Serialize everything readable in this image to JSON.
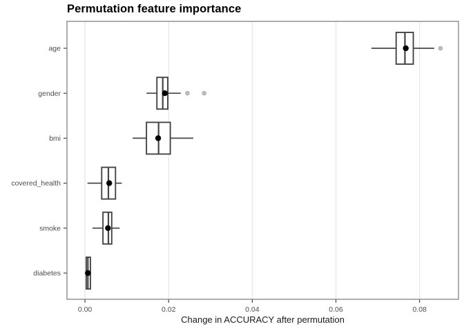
{
  "chart_data": {
    "type": "boxplot",
    "orientation": "horizontal",
    "title": "Permutation feature importance",
    "xlabel": "Change in ACCURACY after permutation",
    "ylabel": "",
    "legend": "none",
    "grid": "major-vertical-only",
    "categories": [
      "age",
      "gender",
      "bmi",
      "covered_health",
      "smoke",
      "diabetes"
    ],
    "xlim": [
      -0.0043,
      0.0893
    ],
    "x_ticks": [
      {
        "label": "0.00",
        "value": 0.0
      },
      {
        "label": "0.02",
        "value": 0.02
      },
      {
        "label": "0.04",
        "value": 0.04
      },
      {
        "label": "0.06",
        "value": 0.06
      },
      {
        "label": "0.08",
        "value": 0.08
      }
    ],
    "boxes": [
      {
        "label": "age",
        "whisker_low": 0.0685,
        "q1": 0.0744,
        "median": 0.0765,
        "q3": 0.0785,
        "whisker_high": 0.0835,
        "mean": 0.0767,
        "outliers": [
          0.085
        ]
      },
      {
        "label": "gender",
        "whisker_low": 0.0147,
        "q1": 0.0172,
        "median": 0.0186,
        "q3": 0.0198,
        "whisker_high": 0.0229,
        "mean": 0.0191,
        "outliers": [
          0.0245,
          0.0285
        ]
      },
      {
        "label": "bmi",
        "whisker_low": 0.0114,
        "q1": 0.0147,
        "median": 0.0176,
        "q3": 0.0204,
        "whisker_high": 0.0259,
        "mean": 0.0175,
        "outliers": []
      },
      {
        "label": "covered_health",
        "whisker_low": 0.0006,
        "q1": 0.004,
        "median": 0.0056,
        "q3": 0.0073,
        "whisker_high": 0.0088,
        "mean": 0.0058,
        "outliers": []
      },
      {
        "label": "smoke",
        "whisker_low": 0.0018,
        "q1": 0.0043,
        "median": 0.0056,
        "q3": 0.0064,
        "whisker_high": 0.0083,
        "mean": 0.0055,
        "outliers": []
      },
      {
        "label": "diabetes",
        "whisker_low": 0.0001,
        "q1": 0.0003,
        "median": 0.0007,
        "q3": 0.0013,
        "whisker_high": 0.0014,
        "mean": 0.0007,
        "outliers": []
      }
    ],
    "colors": {
      "box_stroke": "#454545",
      "box_fill": "#ffffff",
      "mean_dot": "#000000",
      "outlier_dot": "#bdbdbd",
      "gridline": "#e4e4e4",
      "panel_border": "#8a8a8a",
      "tick_mark": "#333333",
      "tick_label": "#4d4d4d",
      "axis_title": "#1a1a1a",
      "title": "#000000",
      "background": "#ffffff"
    }
  }
}
